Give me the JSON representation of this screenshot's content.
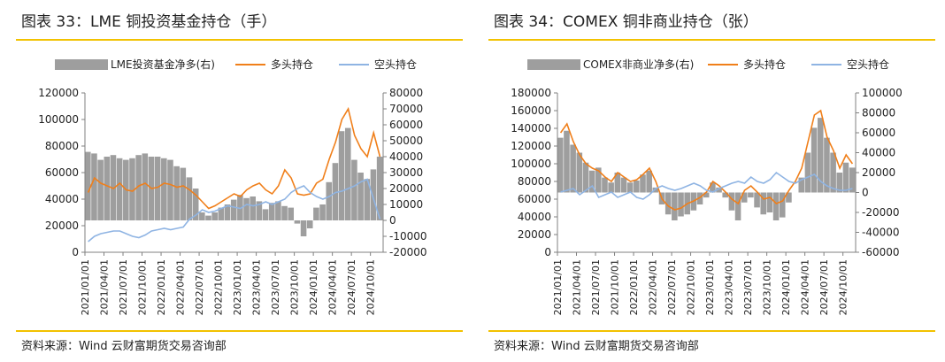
{
  "charts": [
    {
      "id": "left",
      "figure_title": "图表 33：LME 铜投资基金持仓（手）",
      "source": "资料来源：Wind 云财富期货交易咨询部",
      "legend": {
        "bar": "LME投资基金净多(右)",
        "long": "多头持仓",
        "short": "空头持仓"
      },
      "colors": {
        "bar": "#9e9e9e",
        "long": "#f07f1a",
        "short": "#8fb4e3"
      },
      "left_axis": {
        "min": 0,
        "max": 120000,
        "ticks": [
          "0",
          "20000",
          "40000",
          "60000",
          "80000",
          "100000",
          "120000"
        ]
      },
      "right_axis": {
        "min": -20000,
        "max": 80000,
        "ticks": [
          "-20000",
          "-10000",
          "0",
          "10000",
          "20000",
          "30000",
          "40000",
          "50000",
          "60000",
          "70000",
          "80000"
        ]
      },
      "x_ticks": [
        "2021/01/01",
        "2021/04/01",
        "2021/07/01",
        "2021/10/01",
        "2022/01/01",
        "2022/04/01",
        "2022/07/01",
        "2022/10/01",
        "2023/01/01",
        "2023/04/01",
        "2023/07/01",
        "2023/10/01",
        "2024/01/01",
        "2024/04/01",
        "2024/07/01",
        "2024/10/01"
      ],
      "chart_data": {
        "type": "bar+line",
        "x_range": [
          "2021/01/01",
          "2024/11/30"
        ],
        "series": [
          {
            "name": "LME投资基金净多(右)",
            "axis": "right",
            "kind": "bar",
            "x": [
              "2021/01",
              "2021/02",
              "2021/03",
              "2021/04",
              "2021/05",
              "2021/06",
              "2021/07",
              "2021/08",
              "2021/09",
              "2021/10",
              "2021/11",
              "2021/12",
              "2022/01",
              "2022/02",
              "2022/03",
              "2022/04",
              "2022/05",
              "2022/06",
              "2022/07",
              "2022/08",
              "2022/09",
              "2022/10",
              "2022/11",
              "2022/12",
              "2023/01",
              "2023/02",
              "2023/03",
              "2023/04",
              "2023/05",
              "2023/06",
              "2023/07",
              "2023/08",
              "2023/09",
              "2023/10",
              "2023/11",
              "2023/12",
              "2024/01",
              "2024/02",
              "2024/03",
              "2024/04",
              "2024/05",
              "2024/06",
              "2024/07",
              "2024/08",
              "2024/09",
              "2024/10",
              "2024/11"
            ],
            "values": [
              43000,
              42000,
              38000,
              40000,
              41000,
              39000,
              38000,
              39000,
              41000,
              42000,
              40000,
              40000,
              39000,
              38000,
              34000,
              33000,
              27000,
              20000,
              5000,
              3000,
              5000,
              8000,
              10000,
              13000,
              16000,
              14000,
              15000,
              12000,
              7000,
              11000,
              12000,
              9000,
              8000,
              -2000,
              -10000,
              -5000,
              8000,
              10000,
              24000,
              36000,
              56000,
              58000,
              38000,
              30000,
              26000,
              32000,
              40000
            ]
          },
          {
            "name": "多头持仓",
            "axis": "left",
            "kind": "line",
            "x": [
              "2021/01",
              "2021/02",
              "2021/03",
              "2021/04",
              "2021/05",
              "2021/06",
              "2021/07",
              "2021/08",
              "2021/09",
              "2021/10",
              "2021/11",
              "2021/12",
              "2022/01",
              "2022/02",
              "2022/03",
              "2022/04",
              "2022/05",
              "2022/06",
              "2022/07",
              "2022/08",
              "2022/09",
              "2022/10",
              "2022/11",
              "2022/12",
              "2023/01",
              "2023/02",
              "2023/03",
              "2023/04",
              "2023/05",
              "2023/06",
              "2023/07",
              "2023/08",
              "2023/09",
              "2023/10",
              "2023/11",
              "2023/12",
              "2024/01",
              "2024/02",
              "2024/03",
              "2024/04",
              "2024/05",
              "2024/06",
              "2024/07",
              "2024/08",
              "2024/09",
              "2024/10",
              "2024/11"
            ],
            "values": [
              45000,
              56000,
              52000,
              50000,
              48000,
              52000,
              47000,
              46000,
              50000,
              52000,
              48000,
              49000,
              52000,
              51000,
              49000,
              50000,
              47000,
              43000,
              38000,
              33000,
              35000,
              38000,
              41000,
              44000,
              42000,
              47000,
              50000,
              52000,
              47000,
              44000,
              50000,
              62000,
              56000,
              44000,
              43000,
              44000,
              52000,
              55000,
              70000,
              83000,
              100000,
              108000,
              88000,
              78000,
              72000,
              90000,
              72000
            ]
          },
          {
            "name": "空头持仓",
            "axis": "left",
            "kind": "line",
            "x": [
              "2021/01",
              "2021/02",
              "2021/03",
              "2021/04",
              "2021/05",
              "2021/06",
              "2021/07",
              "2021/08",
              "2021/09",
              "2021/10",
              "2021/11",
              "2021/12",
              "2022/01",
              "2022/02",
              "2022/03",
              "2022/04",
              "2022/05",
              "2022/06",
              "2022/07",
              "2022/08",
              "2022/09",
              "2022/10",
              "2022/11",
              "2022/12",
              "2023/01",
              "2023/02",
              "2023/03",
              "2023/04",
              "2023/05",
              "2023/06",
              "2023/07",
              "2023/08",
              "2023/09",
              "2023/10",
              "2023/11",
              "2023/12",
              "2024/01",
              "2024/02",
              "2024/03",
              "2024/04",
              "2024/05",
              "2024/06",
              "2024/07",
              "2024/08",
              "2024/09",
              "2024/10",
              "2024/11"
            ],
            "values": [
              8000,
              12000,
              14000,
              15000,
              16000,
              16000,
              14000,
              12000,
              11000,
              13000,
              16000,
              17000,
              18000,
              17000,
              18000,
              19000,
              25000,
              28000,
              32000,
              30000,
              31000,
              33000,
              35000,
              34000,
              33000,
              36000,
              35000,
              36000,
              38000,
              36000,
              38000,
              40000,
              45000,
              48000,
              50000,
              45000,
              42000,
              40000,
              42000,
              45000,
              46000,
              48000,
              50000,
              53000,
              55000,
              40000,
              25000
            ]
          }
        ]
      }
    },
    {
      "id": "right",
      "figure_title": "图表 34：COMEX 铜非商业持仓（张）",
      "source": "资料来源：Wind 云财富期货交易咨询部",
      "legend": {
        "bar": "COMEX非商业净多(右)",
        "long": "多头持仓",
        "short": "空头持仓"
      },
      "colors": {
        "bar": "#9e9e9e",
        "long": "#f07f1a",
        "short": "#8fb4e3"
      },
      "left_axis": {
        "min": 0,
        "max": 180000,
        "ticks": [
          "0",
          "20000",
          "40000",
          "60000",
          "80000",
          "100000",
          "120000",
          "140000",
          "160000",
          "180000"
        ]
      },
      "right_axis": {
        "min": -60000,
        "max": 100000,
        "ticks": [
          "-60000",
          "-40000",
          "-20000",
          "0",
          "20000",
          "40000",
          "60000",
          "80000",
          "100000"
        ]
      },
      "x_ticks": [
        "2021/01/01",
        "2021/04/01",
        "2021/07/01",
        "2021/10/01",
        "2022/01/01",
        "2022/04/01",
        "2022/07/01",
        "2022/10/01",
        "2023/01/01",
        "2023/04/01",
        "2023/07/01",
        "2023/10/01",
        "2024/01/01",
        "2024/04/01",
        "2024/07/01",
        "2024/10/01"
      ],
      "chart_data": {
        "type": "bar+line",
        "x_range": [
          "2021/01/01",
          "2024/11/30"
        ],
        "series": [
          {
            "name": "COMEX非商业净多(右)",
            "axis": "right",
            "kind": "bar",
            "x": [
              "2021/01",
              "2021/02",
              "2021/03",
              "2021/04",
              "2021/05",
              "2021/06",
              "2021/07",
              "2021/08",
              "2021/09",
              "2021/10",
              "2021/11",
              "2021/12",
              "2022/01",
              "2022/02",
              "2022/03",
              "2022/04",
              "2022/05",
              "2022/06",
              "2022/07",
              "2022/08",
              "2022/09",
              "2022/10",
              "2022/11",
              "2022/12",
              "2023/01",
              "2023/02",
              "2023/03",
              "2023/04",
              "2023/05",
              "2023/06",
              "2023/07",
              "2023/08",
              "2023/09",
              "2023/10",
              "2023/11",
              "2023/12",
              "2024/01",
              "2024/02",
              "2024/03",
              "2024/04",
              "2024/05",
              "2024/06",
              "2024/07",
              "2024/08",
              "2024/09",
              "2024/10",
              "2024/11"
            ],
            "values": [
              55000,
              62000,
              48000,
              40000,
              30000,
              22000,
              25000,
              15000,
              10000,
              20000,
              15000,
              10000,
              12000,
              18000,
              22000,
              5000,
              -12000,
              -22000,
              -28000,
              -24000,
              -22000,
              -18000,
              -12000,
              -5000,
              10000,
              5000,
              -5000,
              -18000,
              -28000,
              -10000,
              -5000,
              -15000,
              -22000,
              -20000,
              -28000,
              -25000,
              -10000,
              0,
              15000,
              40000,
              65000,
              75000,
              55000,
              40000,
              20000,
              30000,
              25000
            ]
          },
          {
            "name": "多头持仓",
            "axis": "left",
            "kind": "line",
            "x": [
              "2021/01",
              "2021/02",
              "2021/03",
              "2021/04",
              "2021/05",
              "2021/06",
              "2021/07",
              "2021/08",
              "2021/09",
              "2021/10",
              "2021/11",
              "2021/12",
              "2022/01",
              "2022/02",
              "2022/03",
              "2022/04",
              "2022/05",
              "2022/06",
              "2022/07",
              "2022/08",
              "2022/09",
              "2022/10",
              "2022/11",
              "2022/12",
              "2023/01",
              "2023/02",
              "2023/03",
              "2023/04",
              "2023/05",
              "2023/06",
              "2023/07",
              "2023/08",
              "2023/09",
              "2023/10",
              "2023/11",
              "2023/12",
              "2024/01",
              "2024/02",
              "2024/03",
              "2024/04",
              "2024/05",
              "2024/06",
              "2024/07",
              "2024/08",
              "2024/09",
              "2024/10",
              "2024/11"
            ],
            "values": [
              135000,
              145000,
              125000,
              110000,
              100000,
              95000,
              92000,
              85000,
              80000,
              90000,
              85000,
              80000,
              82000,
              88000,
              95000,
              80000,
              60000,
              52000,
              48000,
              50000,
              55000,
              58000,
              62000,
              68000,
              80000,
              75000,
              68000,
              60000,
              55000,
              70000,
              75000,
              68000,
              60000,
              62000,
              55000,
              58000,
              70000,
              80000,
              95000,
              125000,
              155000,
              160000,
              130000,
              115000,
              95000,
              110000,
              100000
            ]
          },
          {
            "name": "空头持仓",
            "axis": "left",
            "kind": "line",
            "x": [
              "2021/01",
              "2021/02",
              "2021/03",
              "2021/04",
              "2021/05",
              "2021/06",
              "2021/07",
              "2021/08",
              "2021/09",
              "2021/10",
              "2021/11",
              "2021/12",
              "2022/01",
              "2022/02",
              "2022/03",
              "2022/04",
              "2022/05",
              "2022/06",
              "2022/07",
              "2022/08",
              "2022/09",
              "2022/10",
              "2022/11",
              "2022/12",
              "2023/01",
              "2023/02",
              "2023/03",
              "2023/04",
              "2023/05",
              "2023/06",
              "2023/07",
              "2023/08",
              "2023/09",
              "2023/10",
              "2023/11",
              "2023/12",
              "2024/01",
              "2024/02",
              "2024/03",
              "2024/04",
              "2024/05",
              "2024/06",
              "2024/07",
              "2024/08",
              "2024/09",
              "2024/10",
              "2024/11"
            ],
            "values": [
              68000,
              70000,
              72000,
              65000,
              70000,
              75000,
              62000,
              65000,
              68000,
              62000,
              65000,
              68000,
              62000,
              60000,
              65000,
              72000,
              75000,
              72000,
              70000,
              72000,
              75000,
              78000,
              75000,
              70000,
              68000,
              72000,
              75000,
              78000,
              80000,
              78000,
              85000,
              80000,
              78000,
              82000,
              90000,
              85000,
              80000,
              78000,
              82000,
              85000,
              88000,
              80000,
              75000,
              72000,
              70000,
              70000,
              72000
            ]
          }
        ]
      }
    }
  ]
}
